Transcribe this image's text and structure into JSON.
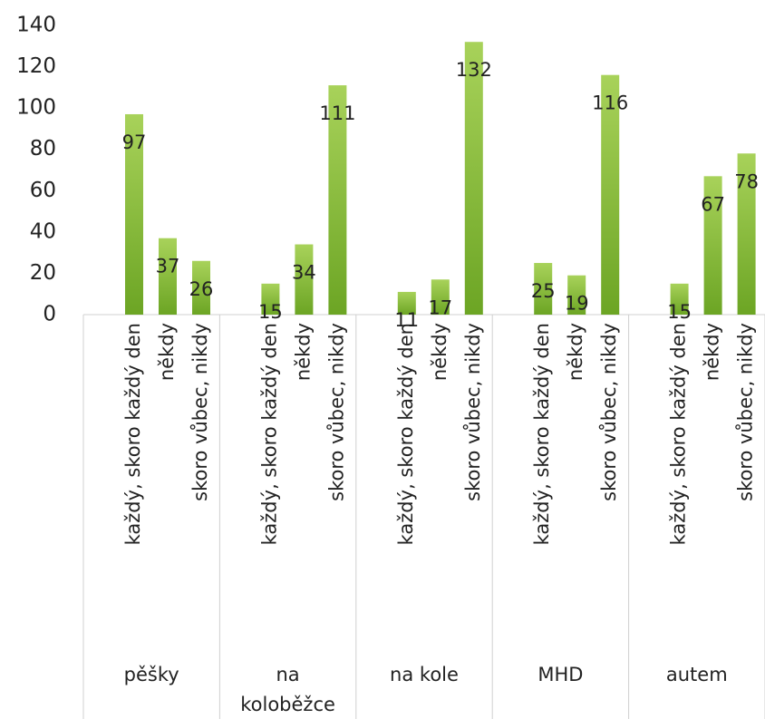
{
  "chart_data": {
    "type": "bar",
    "group_labels": [
      "pěšky",
      "na koloběžce",
      "na kole",
      "MHD",
      "autem"
    ],
    "categories": [
      "každý, skoro každý den",
      "někdy",
      "skoro vůbec, nikdy",
      "každý, skoro každý den",
      "někdy",
      "skoro vůbec, nikdy",
      "každý, skoro každý den",
      "někdy",
      "skoro vůbec, nikdy",
      "každý, skoro každý den",
      "někdy",
      "skoro vůbec, nikdy",
      "každý, skoro každý den",
      "někdy",
      "skoro vůbec, nikdy"
    ],
    "values": [
      97,
      37,
      26,
      15,
      34,
      111,
      11,
      17,
      132,
      25,
      19,
      116,
      15,
      67,
      78
    ],
    "color": "#8cc03c",
    "ylim": [
      0,
      140
    ],
    "yticks": [
      0,
      20,
      40,
      60,
      80,
      100,
      120,
      140
    ],
    "grid": false
  }
}
